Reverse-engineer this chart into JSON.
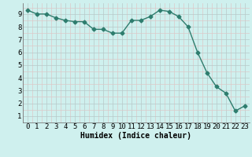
{
  "x_values": [
    0,
    1,
    2,
    3,
    4,
    5,
    6,
    7,
    8,
    9,
    10,
    11,
    12,
    13,
    14,
    15,
    16,
    17,
    18,
    19,
    20,
    21,
    22,
    23
  ],
  "y_values": [
    9.3,
    9.0,
    9.0,
    8.7,
    8.5,
    8.4,
    8.4,
    7.8,
    7.8,
    7.5,
    7.5,
    8.5,
    8.5,
    8.8,
    9.3,
    9.2,
    8.8,
    8.0,
    6.0,
    4.4,
    3.3,
    2.8,
    1.4,
    1.8
  ],
  "line_color": "#2e7d6e",
  "marker": "D",
  "marker_size": 2.5,
  "bg_color": "#cff0ee",
  "grid_major_color": "#b8c8c8",
  "grid_minor_color": "#ddc8c8",
  "xlabel": "Humidex (Indice chaleur)",
  "xlabel_fontsize": 7,
  "ylabel_ticks": [
    1,
    2,
    3,
    4,
    5,
    6,
    7,
    8,
    9
  ],
  "xlim": [
    -0.5,
    23.5
  ],
  "ylim": [
    0.5,
    9.85
  ],
  "tick_fontsize": 6.5,
  "linewidth": 1.0
}
